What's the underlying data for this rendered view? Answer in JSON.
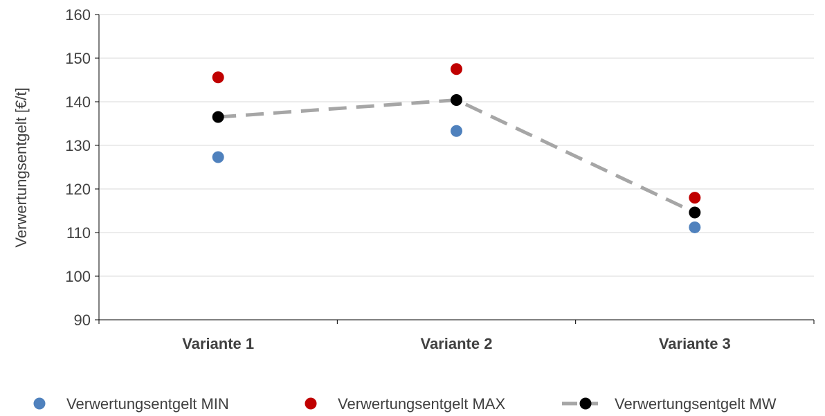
{
  "chart_data": {
    "type": "scatter",
    "categories": [
      "Variante 1",
      "Variante 2",
      "Variante 3"
    ],
    "ylabel": "Verwertungsentgelt [€/t]",
    "ylim": [
      90,
      160
    ],
    "yticks": [
      90,
      100,
      110,
      120,
      130,
      140,
      150,
      160
    ],
    "grid": true,
    "legend_position": "bottom",
    "series": [
      {
        "name": "Verwertungsentgelt MIN",
        "values": [
          127.3,
          133.3,
          111.2
        ],
        "color": "#4F81BD",
        "style": "markers"
      },
      {
        "name": "Verwertungsentgelt MAX",
        "values": [
          145.6,
          147.5,
          118.0
        ],
        "color": "#C00000",
        "style": "markers"
      },
      {
        "name": "Verwertungsentgelt MW",
        "values": [
          136.5,
          140.4,
          114.6
        ],
        "color": "#000000",
        "line_color": "#A6A6A6",
        "style": "dashed-line-markers"
      }
    ]
  }
}
